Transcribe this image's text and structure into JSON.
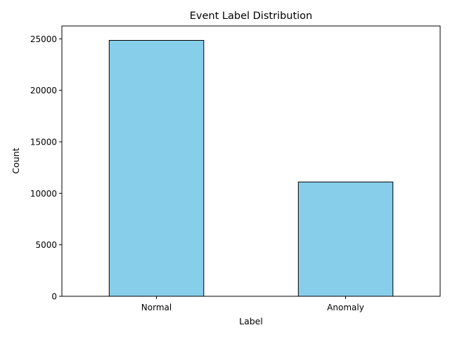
{
  "chart_data": {
    "type": "bar",
    "title": "Event Label Distribution",
    "xlabel": "Label",
    "ylabel": "Count",
    "categories": [
      "Normal",
      "Anomaly"
    ],
    "values": [
      24850,
      11100
    ],
    "ylim": [
      0,
      26250
    ],
    "yticks": [
      0,
      5000,
      10000,
      15000,
      20000,
      25000
    ],
    "grid": false,
    "legend": "none",
    "bar_color": "#87CEEB",
    "bar_edge_color": "#000000"
  }
}
